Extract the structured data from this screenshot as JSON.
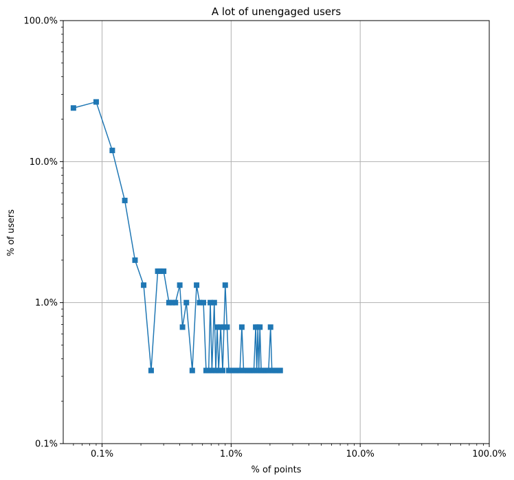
{
  "chart_data": {
    "type": "line",
    "title": "A lot of unengaged users",
    "xlabel": "% of points",
    "ylabel": "% of users",
    "xscale": "log",
    "yscale": "log",
    "xlim": [
      0.05,
      100
    ],
    "ylim": [
      0.1,
      100
    ],
    "grid": true,
    "marker": "square",
    "color": "#1f77b4",
    "x_ticks": [
      {
        "value": 0.1,
        "label": "0.1%"
      },
      {
        "value": 1,
        "label": "1.0%"
      },
      {
        "value": 10,
        "label": "10.0%"
      },
      {
        "value": 100,
        "label": "100.0%"
      }
    ],
    "y_ticks": [
      {
        "value": 0.1,
        "label": "0.1%"
      },
      {
        "value": 1,
        "label": "1.0%"
      },
      {
        "value": 10,
        "label": "10.0%"
      },
      {
        "value": 100,
        "label": "100.0%"
      }
    ],
    "series": [
      {
        "x": [
          0.06,
          0.09,
          0.12,
          0.15,
          0.18,
          0.21,
          0.24,
          0.27,
          0.28,
          0.3,
          0.33,
          0.35,
          0.37,
          0.4,
          0.42,
          0.45,
          0.5,
          0.54,
          0.57,
          0.61,
          0.64,
          0.67,
          0.69,
          0.71,
          0.74,
          0.76,
          0.78,
          0.8,
          0.83,
          0.86,
          0.88,
          0.9,
          0.93,
          0.96,
          1.0,
          1.03,
          1.07,
          1.1,
          1.14,
          1.17,
          1.21,
          1.25,
          1.3,
          1.35,
          1.4,
          1.45,
          1.5,
          1.55,
          1.58,
          1.61,
          1.64,
          1.67,
          1.71,
          1.76,
          1.82,
          1.88,
          1.95,
          2.02,
          2.07,
          2.12,
          2.2,
          2.28,
          2.36,
          2.4
        ],
        "y": [
          24,
          26.5,
          12,
          5.3,
          2.0,
          1.33,
          0.33,
          1.67,
          1.67,
          1.67,
          1.0,
          1.0,
          1.0,
          1.33,
          0.67,
          1.0,
          0.33,
          1.33,
          1.0,
          1.0,
          0.33,
          0.33,
          1.0,
          0.33,
          1.0,
          0.33,
          0.67,
          0.33,
          0.67,
          0.33,
          0.67,
          1.33,
          0.67,
          0.33,
          0.33,
          0.33,
          0.33,
          0.33,
          0.33,
          0.33,
          0.67,
          0.33,
          0.33,
          0.33,
          0.33,
          0.33,
          0.33,
          0.67,
          0.33,
          0.67,
          0.33,
          0.67,
          0.33,
          0.33,
          0.33,
          0.33,
          0.33,
          0.67,
          0.33,
          0.33,
          0.33,
          0.33,
          0.33,
          0.33
        ]
      }
    ]
  }
}
